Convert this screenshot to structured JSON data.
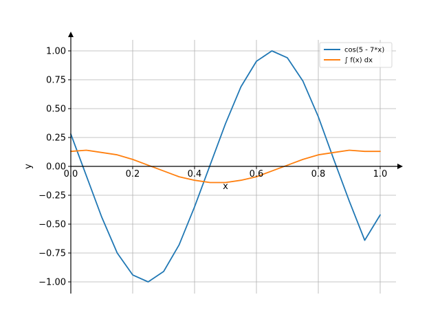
{
  "chart_data": {
    "type": "line",
    "title": "",
    "xlabel": "x",
    "ylabel": "y",
    "xlim": [
      0.0,
      1.05
    ],
    "ylim": [
      -1.1,
      1.15
    ],
    "grid": true,
    "legend_position": "top-right",
    "x_ticks": [
      0.0,
      0.2,
      0.4,
      0.6,
      0.8,
      1.0
    ],
    "x_tick_labels": [
      "0.0",
      "0.2",
      "0.4",
      "0.6",
      "0.8",
      "1.0"
    ],
    "y_ticks": [
      1.0,
      0.75,
      0.5,
      0.25,
      0.0,
      -0.25,
      -0.5,
      -0.75,
      -1.0
    ],
    "y_tick_labels": [
      "1.00",
      "0.75",
      "0.50",
      "0.25",
      "0.00",
      "−0.25",
      "−0.50",
      "−0.75",
      "−1.00"
    ],
    "x": [
      0.0,
      0.05,
      0.1,
      0.15,
      0.2,
      0.25,
      0.3,
      0.35,
      0.4,
      0.45,
      0.5,
      0.55,
      0.6,
      0.65,
      0.7,
      0.75,
      0.8,
      0.85,
      0.9,
      0.95,
      1.0
    ],
    "series": [
      {
        "name": "cos(5 - 7*x)",
        "color": "#1f77b4",
        "values": [
          0.28,
          -0.08,
          -0.44,
          -0.75,
          -0.94,
          -1.0,
          -0.91,
          -0.68,
          -0.35,
          0.01,
          0.37,
          0.69,
          0.91,
          1.0,
          0.94,
          0.74,
          0.43,
          0.06,
          -0.3,
          -0.64,
          -0.42
        ]
      },
      {
        "name": "∫ f(x) dx",
        "color": "#ff7f0e",
        "values": [
          0.13,
          0.14,
          0.12,
          0.1,
          0.06,
          0.01,
          -0.04,
          -0.09,
          -0.12,
          -0.14,
          -0.14,
          -0.12,
          -0.09,
          -0.04,
          0.01,
          0.06,
          0.1,
          0.12,
          0.14,
          0.13,
          0.13
        ]
      }
    ]
  }
}
